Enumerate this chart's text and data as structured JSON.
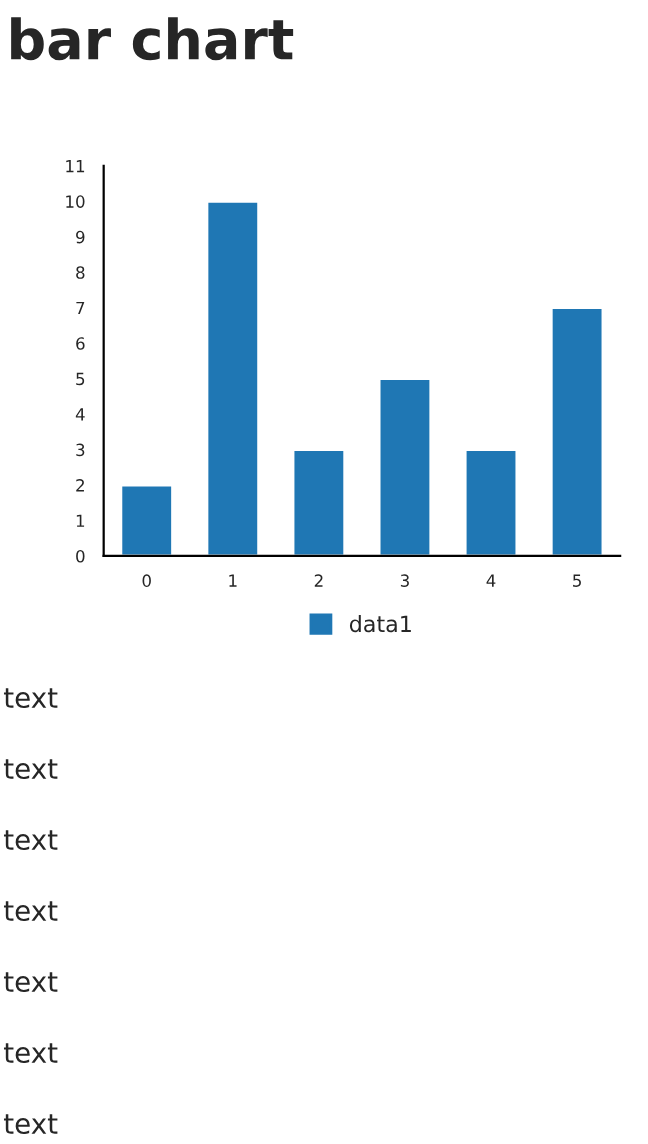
{
  "chart_data": {
    "type": "bar",
    "title": "bar chart",
    "categories": [
      "0",
      "1",
      "2",
      "3",
      "4",
      "5"
    ],
    "series": [
      {
        "name": "data1",
        "color": "#1f77b4",
        "values": [
          2,
          10,
          3,
          5,
          3,
          7
        ]
      }
    ],
    "ylim": [
      0,
      11
    ],
    "yticks": [
      0,
      1,
      2,
      3,
      4,
      5,
      6,
      7,
      8,
      9,
      10,
      11
    ],
    "grid": false,
    "legend": "bottom",
    "annotations": [
      "text",
      "text",
      "text",
      "text",
      "text",
      "text",
      "text"
    ]
  }
}
